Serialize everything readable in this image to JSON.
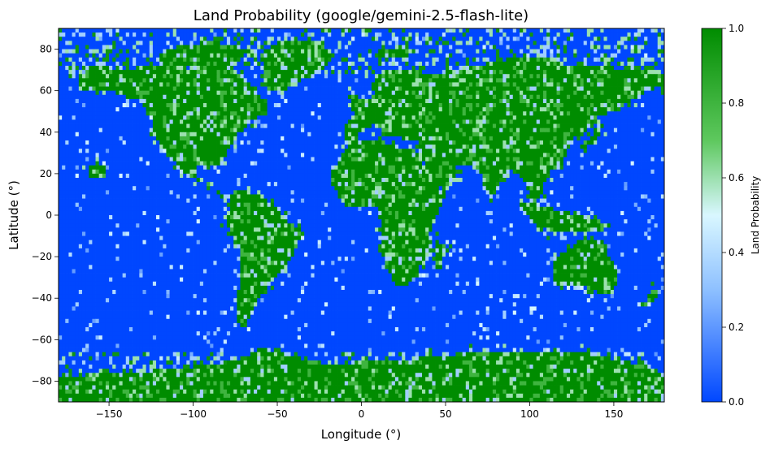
{
  "chart_data": {
    "type": "heatmap",
    "title": "Land Probability (google/gemini-2.5-flash-lite)",
    "xlabel": "Longitude (°)",
    "ylabel": "Latitude (°)",
    "xlim": [
      -180,
      180
    ],
    "ylim": [
      -90,
      90
    ],
    "x_ticks": [
      -150,
      -100,
      -50,
      0,
      50,
      100,
      150
    ],
    "x_tick_labels": [
      "−150",
      "−100",
      "−50",
      "0",
      "50",
      "100",
      "150"
    ],
    "y_ticks": [
      -80,
      -60,
      -40,
      -20,
      0,
      20,
      40,
      60,
      80
    ],
    "y_tick_labels": [
      "−80",
      "−60",
      "−40",
      "−20",
      "0",
      "20",
      "40",
      "60",
      "80"
    ],
    "grid": false,
    "colorbar": {
      "label": "Land Probability",
      "range": [
        0,
        1
      ],
      "ticks": [
        0.0,
        0.2,
        0.4,
        0.6,
        0.8,
        1.0
      ],
      "tick_labels": [
        "0.0",
        "0.2",
        "0.4",
        "0.6",
        "0.8",
        "1.0"
      ],
      "colors": [
        "#0047ff",
        "#8ec0ff",
        "#d9f7ff",
        "#5ec85e",
        "#008c00"
      ],
      "color_stops": [
        0,
        0.3,
        0.5,
        0.7,
        1
      ]
    },
    "cell_size_degrees": 2,
    "land_regions": [
      {
        "name": "North America",
        "polygon": [
          [
            -168,
            66
          ],
          [
            -160,
            72
          ],
          [
            -140,
            70
          ],
          [
            -125,
            72
          ],
          [
            -100,
            70
          ],
          [
            -82,
            73
          ],
          [
            -65,
            62
          ],
          [
            -55,
            52
          ],
          [
            -65,
            45
          ],
          [
            -75,
            38
          ],
          [
            -80,
            30
          ],
          [
            -83,
            25
          ],
          [
            -97,
            25
          ],
          [
            -97,
            18
          ],
          [
            -90,
            15
          ],
          [
            -83,
            9
          ],
          [
            -78,
            8
          ],
          [
            -85,
            12
          ],
          [
            -92,
            15
          ],
          [
            -105,
            20
          ],
          [
            -112,
            28
          ],
          [
            -118,
            33
          ],
          [
            -124,
            40
          ],
          [
            -125,
            48
          ],
          [
            -132,
            55
          ],
          [
            -150,
            60
          ],
          [
            -165,
            60
          ]
        ]
      },
      {
        "name": "Greenland",
        "polygon": [
          [
            -55,
            60
          ],
          [
            -45,
            60
          ],
          [
            -30,
            68
          ],
          [
            -20,
            72
          ],
          [
            -18,
            80
          ],
          [
            -30,
            84
          ],
          [
            -50,
            83
          ],
          [
            -60,
            78
          ],
          [
            -58,
            70
          ]
        ]
      },
      {
        "name": "South America",
        "polygon": [
          [
            -80,
            10
          ],
          [
            -72,
            12
          ],
          [
            -62,
            10
          ],
          [
            -52,
            5
          ],
          [
            -45,
            -2
          ],
          [
            -35,
            -7
          ],
          [
            -38,
            -15
          ],
          [
            -42,
            -22
          ],
          [
            -48,
            -28
          ],
          [
            -55,
            -35
          ],
          [
            -63,
            -42
          ],
          [
            -67,
            -50
          ],
          [
            -72,
            -54
          ],
          [
            -75,
            -48
          ],
          [
            -72,
            -30
          ],
          [
            -71,
            -18
          ],
          [
            -78,
            -8
          ],
          [
            -80,
            -2
          ],
          [
            -78,
            5
          ]
        ]
      },
      {
        "name": "Eurasia",
        "polygon": [
          [
            -10,
            36
          ],
          [
            -10,
            44
          ],
          [
            -5,
            48
          ],
          [
            0,
            51
          ],
          [
            5,
            55
          ],
          [
            8,
            58
          ],
          [
            5,
            62
          ],
          [
            12,
            68
          ],
          [
            20,
            71
          ],
          [
            30,
            70
          ],
          [
            40,
            68
          ],
          [
            60,
            70
          ],
          [
            80,
            74
          ],
          [
            100,
            77
          ],
          [
            120,
            73
          ],
          [
            140,
            72
          ],
          [
            160,
            70
          ],
          [
            180,
            68
          ],
          [
            180,
            62
          ],
          [
            170,
            60
          ],
          [
            160,
            55
          ],
          [
            150,
            50
          ],
          [
            140,
            47
          ],
          [
            135,
            42
          ],
          [
            128,
            38
          ],
          [
            122,
            32
          ],
          [
            120,
            25
          ],
          [
            110,
            20
          ],
          [
            108,
            12
          ],
          [
            103,
            5
          ],
          [
            100,
            10
          ],
          [
            98,
            16
          ],
          [
            92,
            22
          ],
          [
            88,
            22
          ],
          [
            80,
            15
          ],
          [
            77,
            8
          ],
          [
            72,
            20
          ],
          [
            66,
            25
          ],
          [
            57,
            25
          ],
          [
            56,
            16
          ],
          [
            43,
            12
          ],
          [
            36,
            28
          ],
          [
            34,
            32
          ],
          [
            36,
            36
          ],
          [
            26,
            36
          ],
          [
            22,
            38
          ],
          [
            15,
            38
          ],
          [
            10,
            44
          ],
          [
            3,
            42
          ],
          [
            -5,
            36
          ]
        ]
      },
      {
        "name": "Africa",
        "polygon": [
          [
            -17,
            15
          ],
          [
            -17,
            21
          ],
          [
            -10,
            30
          ],
          [
            -5,
            35
          ],
          [
            10,
            37
          ],
          [
            20,
            33
          ],
          [
            32,
            31
          ],
          [
            35,
            28
          ],
          [
            43,
            12
          ],
          [
            51,
            12
          ],
          [
            45,
            0
          ],
          [
            40,
            -10
          ],
          [
            40,
            -16
          ],
          [
            35,
            -25
          ],
          [
            28,
            -33
          ],
          [
            20,
            -35
          ],
          [
            18,
            -30
          ],
          [
            12,
            -18
          ],
          [
            12,
            -5
          ],
          [
            9,
            4
          ],
          [
            0,
            5
          ],
          [
            -8,
            4
          ],
          [
            -14,
            10
          ]
        ]
      },
      {
        "name": "Australia",
        "polygon": [
          [
            114,
            -22
          ],
          [
            114,
            -34
          ],
          [
            125,
            -33
          ],
          [
            135,
            -35
          ],
          [
            143,
            -38
          ],
          [
            150,
            -37
          ],
          [
            153,
            -28
          ],
          [
            146,
            -18
          ],
          [
            142,
            -11
          ],
          [
            136,
            -12
          ],
          [
            130,
            -12
          ],
          [
            122,
            -17
          ]
        ]
      },
      {
        "name": "Antarctica",
        "polygon": [
          [
            -180,
            -90
          ],
          [
            180,
            -90
          ],
          [
            180,
            -78
          ],
          [
            165,
            -72
          ],
          [
            130,
            -66
          ],
          [
            90,
            -66
          ],
          [
            60,
            -67
          ],
          [
            20,
            -70
          ],
          [
            -20,
            -72
          ],
          [
            -60,
            -64
          ],
          [
            -70,
            -70
          ],
          [
            -100,
            -73
          ],
          [
            -140,
            -76
          ],
          [
            -180,
            -78
          ]
        ]
      },
      {
        "name": "Indonesia",
        "polygon": [
          [
            95,
            5
          ],
          [
            105,
            -6
          ],
          [
            115,
            -8
          ],
          [
            125,
            -8
          ],
          [
            140,
            -8
          ],
          [
            150,
            -6
          ],
          [
            140,
            -2
          ],
          [
            130,
            0
          ],
          [
            120,
            2
          ],
          [
            110,
            4
          ],
          [
            100,
            6
          ]
        ]
      },
      {
        "name": "UK",
        "polygon": [
          [
            -6,
            50
          ],
          [
            2,
            51
          ],
          [
            -1,
            56
          ],
          [
            -3,
            59
          ],
          [
            -7,
            57
          ]
        ]
      },
      {
        "name": "Japan",
        "polygon": [
          [
            130,
            31
          ],
          [
            140,
            35
          ],
          [
            142,
            41
          ],
          [
            145,
            44
          ],
          [
            141,
            45
          ],
          [
            136,
            37
          ],
          [
            130,
            34
          ]
        ]
      },
      {
        "name": "Madagascar",
        "polygon": [
          [
            43,
            -12
          ],
          [
            50,
            -15
          ],
          [
            48,
            -25
          ],
          [
            44,
            -25
          ]
        ]
      },
      {
        "name": "New Zealand",
        "polygon": [
          [
            166,
            -46
          ],
          [
            174,
            -41
          ],
          [
            178,
            -38
          ],
          [
            173,
            -35
          ],
          [
            168,
            -45
          ]
        ]
      },
      {
        "name": "Svalbard",
        "polygon": [
          [
            10,
            77
          ],
          [
            28,
            77
          ],
          [
            28,
            81
          ],
          [
            10,
            81
          ]
        ]
      },
      {
        "name": "Arctic Islands",
        "polygon": [
          [
            -120,
            72
          ],
          [
            -80,
            72
          ],
          [
            -65,
            80
          ],
          [
            -90,
            84
          ],
          [
            -120,
            78
          ]
        ]
      },
      {
        "name": "Hawaii",
        "polygon": [
          [
            -162,
            18
          ],
          [
            -152,
            18
          ],
          [
            -152,
            24
          ],
          [
            -162,
            24
          ]
        ]
      }
    ]
  }
}
